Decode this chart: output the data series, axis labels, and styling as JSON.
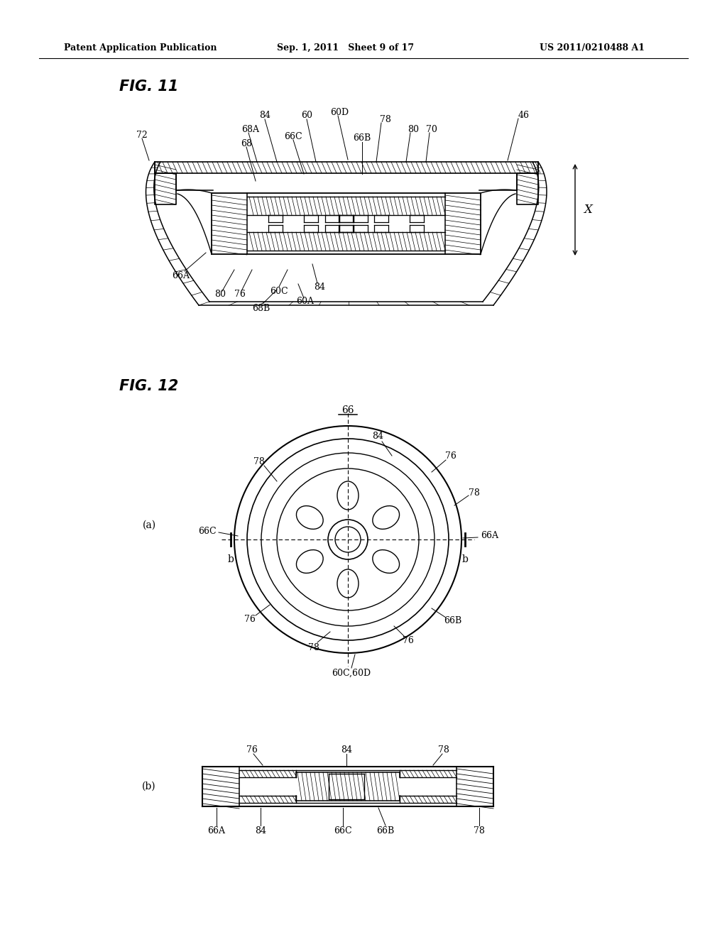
{
  "header_left": "Patent Application Publication",
  "header_mid": "Sep. 1, 2011   Sheet 9 of 17",
  "header_right": "US 2011/0210488 A1",
  "fig11_title": "FIG. 11",
  "fig12_title": "FIG. 12",
  "background": "#ffffff",
  "line_color": "#000000",
  "label_fontsize": 9,
  "header_fontsize": 9,
  "title_fontsize": 14
}
